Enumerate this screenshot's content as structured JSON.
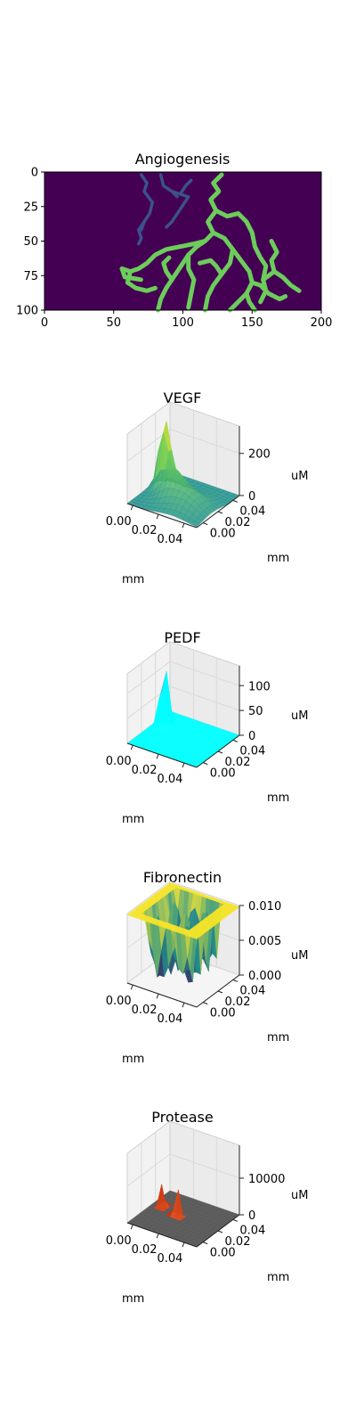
{
  "chart_data": [
    {
      "type": "heatmap",
      "title": "Angiogenesis",
      "xlim": [
        0,
        200
      ],
      "ylim": [
        100,
        0
      ],
      "xticks": [
        "0",
        "50",
        "100",
        "150",
        "200"
      ],
      "yticks": [
        "0",
        "25",
        "50",
        "75",
        "100"
      ],
      "colors": {
        "background": "#440154",
        "vessel": "#6ccd5a",
        "sprout": "#3b528b"
      },
      "vessel_paths": [
        [
          [
            128,
            2
          ],
          [
            122,
            8
          ],
          [
            126,
            14
          ],
          [
            120,
            20
          ],
          [
            124,
            28
          ],
          [
            118,
            36
          ],
          [
            122,
            44
          ],
          [
            116,
            50
          ],
          [
            110,
            54
          ],
          [
            104,
            60
          ],
          [
            100,
            66
          ],
          [
            96,
            72
          ],
          [
            92,
            78
          ],
          [
            88,
            84
          ],
          [
            84,
            92
          ],
          [
            82,
            100
          ]
        ],
        [
          [
            116,
            50
          ],
          [
            108,
            52
          ],
          [
            98,
            54
          ],
          [
            88,
            56
          ],
          [
            80,
            60
          ],
          [
            74,
            66
          ],
          [
            68,
            70
          ],
          [
            62,
            72
          ],
          [
            56,
            70
          ]
        ],
        [
          [
            62,
            72
          ],
          [
            60,
            80
          ],
          [
            66,
            84
          ],
          [
            74,
            86
          ],
          [
            80,
            84
          ]
        ],
        [
          [
            56,
            70
          ],
          [
            58,
            76
          ],
          [
            70,
            78
          ]
        ],
        [
          [
            104,
            60
          ],
          [
            104,
            70
          ],
          [
            108,
            78
          ],
          [
            106,
            88
          ],
          [
            104,
            98
          ]
        ],
        [
          [
            124,
            28
          ],
          [
            132,
            32
          ],
          [
            140,
            30
          ],
          [
            146,
            36
          ],
          [
            150,
            44
          ],
          [
            152,
            54
          ],
          [
            156,
            62
          ],
          [
            160,
            68
          ],
          [
            158,
            78
          ],
          [
            160,
            86
          ],
          [
            156,
            94
          ]
        ],
        [
          [
            122,
            44
          ],
          [
            130,
            48
          ],
          [
            136,
            56
          ],
          [
            134,
            66
          ],
          [
            128,
            74
          ],
          [
            122,
            82
          ],
          [
            118,
            90
          ],
          [
            116,
            100
          ]
        ],
        [
          [
            136,
            56
          ],
          [
            142,
            64
          ],
          [
            148,
            72
          ],
          [
            150,
            80
          ],
          [
            146,
            88
          ],
          [
            140,
            94
          ],
          [
            134,
            100
          ]
        ],
        [
          [
            158,
            78
          ],
          [
            166,
            72
          ],
          [
            172,
            76
          ],
          [
            178,
            82
          ],
          [
            184,
            86
          ]
        ],
        [
          [
            166,
            72
          ],
          [
            164,
            64
          ],
          [
            168,
            58
          ],
          [
            164,
            50
          ]
        ],
        [
          [
            150,
            80
          ],
          [
            156,
            82
          ],
          [
            162,
            88
          ],
          [
            170,
            92
          ],
          [
            174,
            90
          ]
        ],
        [
          [
            92,
            78
          ],
          [
            88,
            72
          ],
          [
            86,
            66
          ],
          [
            90,
            62
          ]
        ],
        [
          [
            128,
            74
          ],
          [
            124,
            68
          ],
          [
            120,
            64
          ],
          [
            112,
            66
          ]
        ],
        [
          [
            146,
            88
          ],
          [
            148,
            94
          ],
          [
            152,
            100
          ]
        ]
      ],
      "sprout_paths": [
        [
          [
            70,
            2
          ],
          [
            74,
            8
          ],
          [
            72,
            14
          ],
          [
            78,
            22
          ],
          [
            76,
            30
          ],
          [
            72,
            36
          ],
          [
            70,
            42
          ]
        ],
        [
          [
            84,
            2
          ],
          [
            86,
            10
          ],
          [
            92,
            14
          ],
          [
            96,
            18
          ]
        ],
        [
          [
            92,
            14
          ],
          [
            98,
            16
          ],
          [
            104,
            18
          ],
          [
            100,
            24
          ],
          [
            96,
            30
          ],
          [
            92,
            36
          ],
          [
            88,
            40
          ]
        ],
        [
          [
            72,
            36
          ],
          [
            68,
            42
          ],
          [
            70,
            48
          ],
          [
            68,
            52
          ]
        ],
        [
          [
            98,
            16
          ],
          [
            102,
            10
          ],
          [
            106,
            6
          ]
        ]
      ]
    },
    {
      "type": "surface",
      "title": "VEGF",
      "xlabel": "mm",
      "ylabel": "mm",
      "zlabel": "uM",
      "xticks": [
        "0.00",
        "0.02",
        "0.04"
      ],
      "yticks": [
        "0.00",
        "0.02",
        "0.04"
      ],
      "zticks": [
        "0",
        "200"
      ],
      "zlim": [
        0,
        330
      ],
      "colors": {
        "low": "#21918c",
        "mid": "#6ccd5a",
        "high": "#fde725",
        "wall": "#f2f2f2"
      },
      "peaks": [
        {
          "x": 0.8,
          "y": 0.55,
          "height": 320,
          "width": 0.07
        },
        {
          "x": 0.62,
          "y": 0.45,
          "height": 110,
          "width": 0.12
        },
        {
          "x": 0.35,
          "y": 0.35,
          "height": 80,
          "width": 0.2
        }
      ]
    },
    {
      "type": "surface",
      "title": "PEDF",
      "xlabel": "mm",
      "ylabel": "mm",
      "zlabel": "uM",
      "xticks": [
        "0.00",
        "0.02",
        "0.04"
      ],
      "yticks": [
        "0.00",
        "0.02",
        "0.04"
      ],
      "zticks": [
        "0",
        "50",
        "100"
      ],
      "zlim": [
        0,
        140
      ],
      "colors": {
        "low": "#00ffff",
        "high": "#ff00ff",
        "wall": "#f2f2f2"
      },
      "peaks": [
        {
          "x": 0.8,
          "y": 0.55,
          "height": 130,
          "width": 0.06
        }
      ]
    },
    {
      "type": "surface",
      "title": "Fibronectin",
      "xlabel": "mm",
      "ylabel": "mm",
      "zlabel": "uM",
      "xticks": [
        "0.00",
        "0.02",
        "0.04"
      ],
      "yticks": [
        "0.00",
        "0.02",
        "0.04"
      ],
      "zticks": [
        "0.000",
        "0.005",
        "0.010"
      ],
      "zlim": [
        0,
        0.01
      ],
      "colors": {
        "low": "#440154",
        "mid": "#21918c",
        "high": "#fde725",
        "wall": "#f2f2f2"
      }
    },
    {
      "type": "surface",
      "title": "Protease",
      "xlabel": "mm",
      "ylabel": "mm",
      "zlabel": "uM",
      "xticks": [
        "0.00",
        "0.02",
        "0.04"
      ],
      "yticks": [
        "0.00",
        "0.02",
        "0.04"
      ],
      "zticks": [
        "0",
        "10000"
      ],
      "zlim": [
        0,
        19000
      ],
      "colors": {
        "low": "#555555",
        "mid": "#cc2200",
        "high": "#ffff99",
        "wall": "#f2f2f2"
      },
      "peaks": [
        {
          "x": 0.86,
          "y": 0.6,
          "height": 18000,
          "width": 0.02
        },
        {
          "x": 0.58,
          "y": 0.5,
          "height": 8000,
          "width": 0.02
        },
        {
          "x": 0.62,
          "y": 0.48,
          "height": 5000,
          "width": 0.02
        }
      ]
    }
  ]
}
